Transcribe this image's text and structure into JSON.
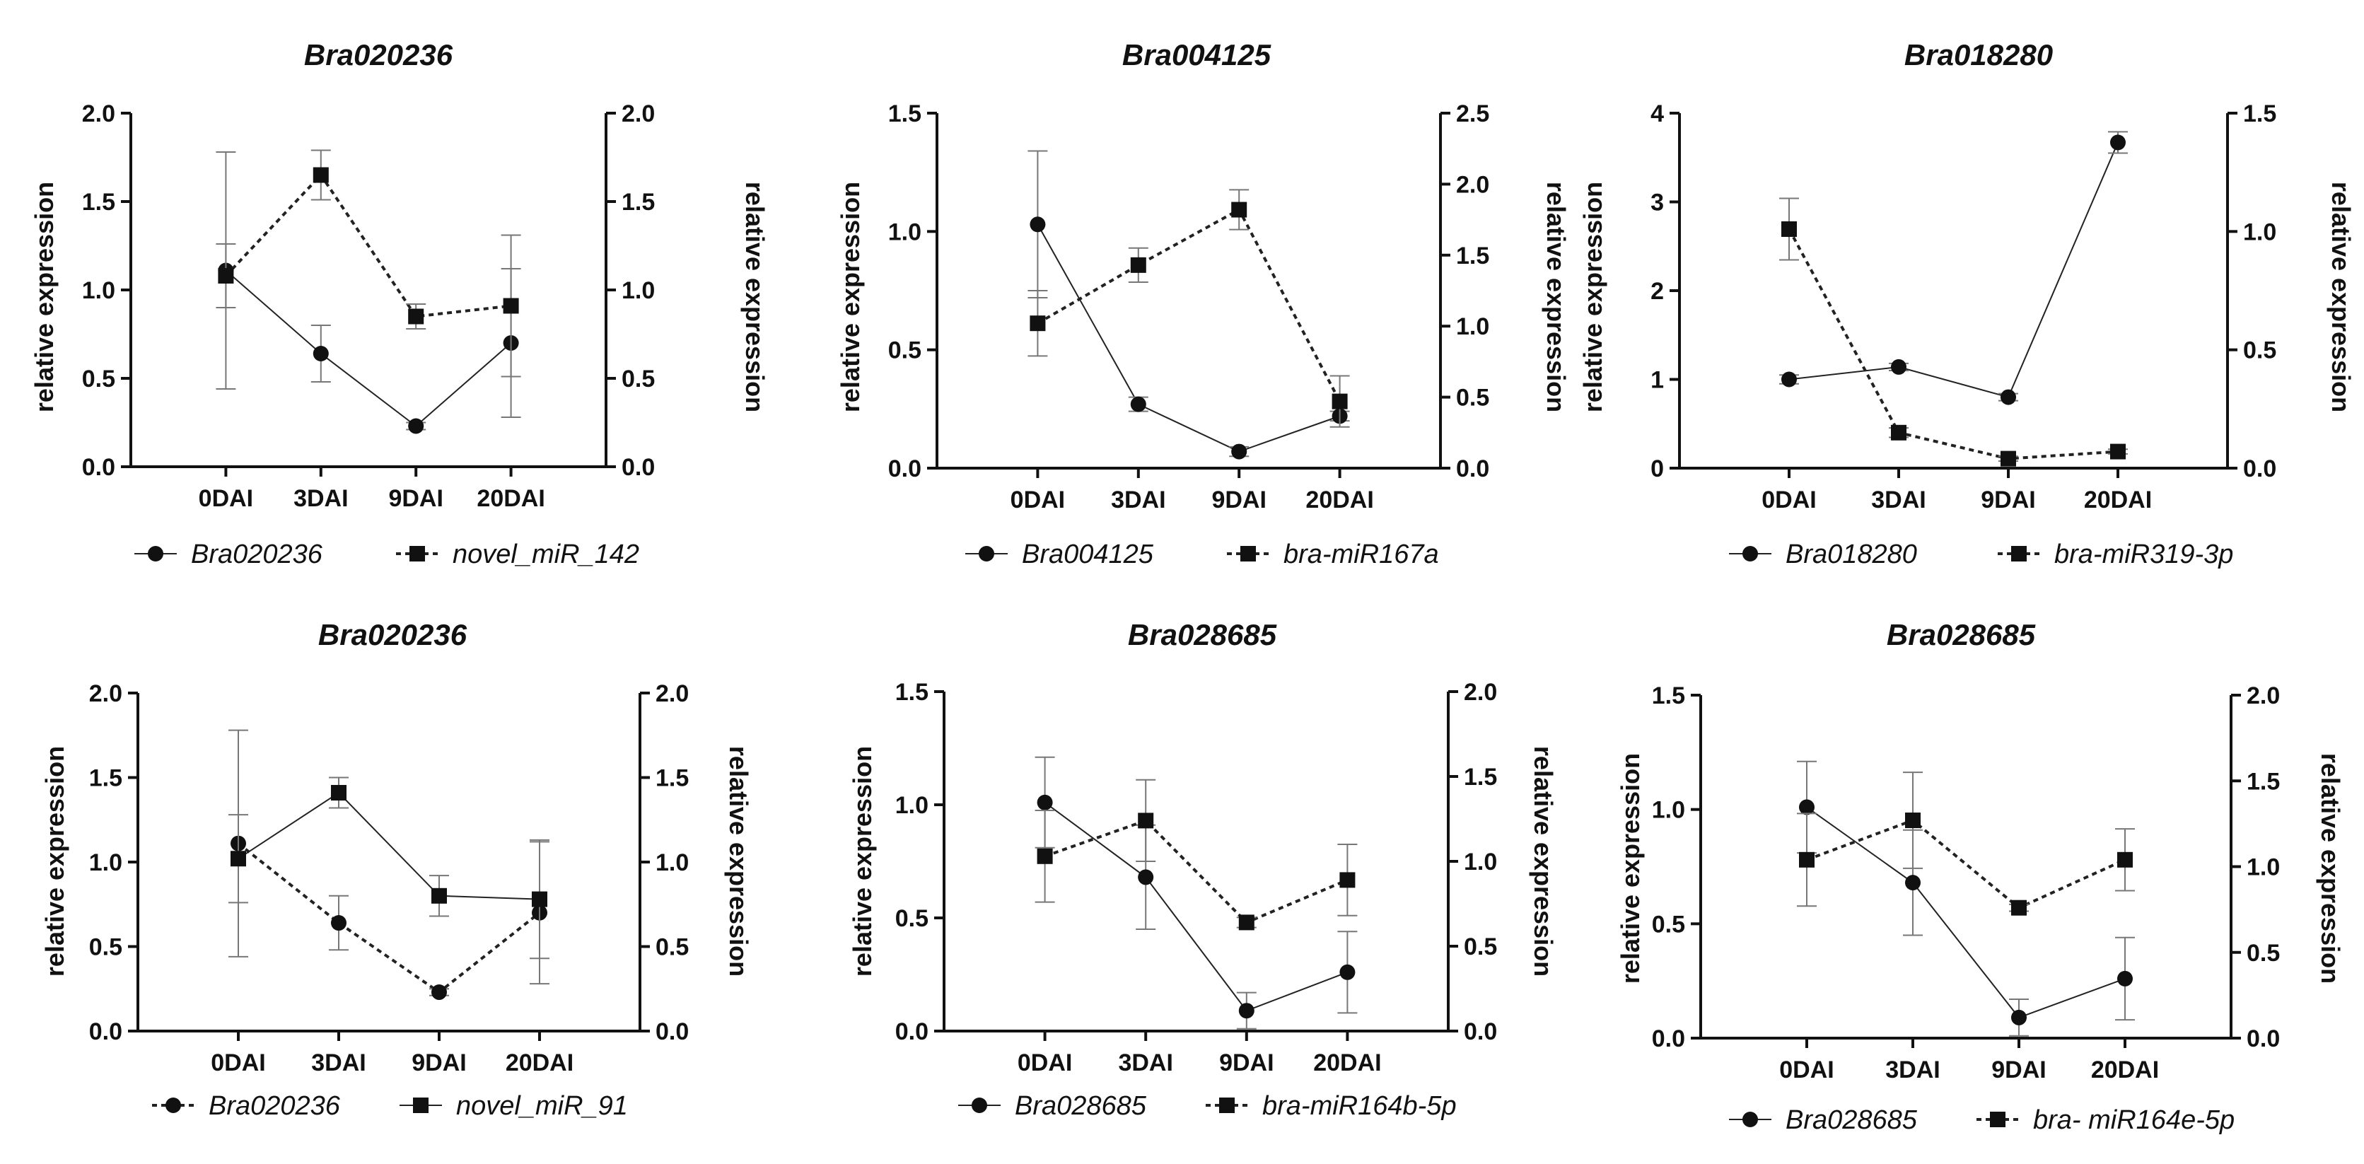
{
  "chart_data": [
    {
      "type": "line",
      "title": "Bra020236",
      "categories": [
        "0DAI",
        "3DAI",
        "9DAI",
        "20DAI"
      ],
      "ylabel": "relative expression",
      "y2label": "relative expression",
      "ylim": [
        0,
        2.0
      ],
      "yticks": [
        "0.0",
        "0.5",
        "1.0",
        "1.5",
        "2.0"
      ],
      "y2lim": [
        0,
        2.0
      ],
      "y2ticks": [
        "0.0",
        "0.5",
        "1.0",
        "1.5",
        "2.0"
      ],
      "series": [
        {
          "name": "Bra020236",
          "axis": "left",
          "marker": "circle",
          "line": "solid",
          "values": [
            1.11,
            0.64,
            0.23,
            0.7
          ],
          "errors": [
            0.67,
            0.16,
            0.02,
            0.42
          ]
        },
        {
          "name": "novel_miR_142",
          "axis": "right",
          "marker": "square",
          "line": "dotted",
          "values": [
            1.08,
            1.65,
            0.85,
            0.91
          ],
          "errors": [
            0.18,
            0.14,
            0.07,
            0.4
          ]
        }
      ]
    },
    {
      "type": "line",
      "title": "Bra004125",
      "categories": [
        "0DAI",
        "3DAI",
        "9DAI",
        "20DAI"
      ],
      "ylabel": "relative expression",
      "y2label": "relative expression",
      "ylim": [
        0,
        1.5
      ],
      "yticks": [
        "0.0",
        "0.5",
        "1.0",
        "1.5"
      ],
      "y2lim": [
        0,
        2.5
      ],
      "y2ticks": [
        "0.0",
        "0.5",
        "1.0",
        "1.5",
        "2.0",
        "2.5"
      ],
      "series": [
        {
          "name": "Bra004125",
          "axis": "left",
          "marker": "circle",
          "line": "solid",
          "values": [
            1.03,
            0.27,
            0.07,
            0.22
          ],
          "errors": [
            0.31,
            0.03,
            0.02,
            0.02
          ]
        },
        {
          "name": "bra-miR167a",
          "axis": "right",
          "marker": "square",
          "line": "dotted",
          "values": [
            1.02,
            1.43,
            1.82,
            0.47
          ],
          "errors": [
            0.23,
            0.12,
            0.14,
            0.18
          ]
        }
      ]
    },
    {
      "type": "line",
      "title": "Bra018280",
      "categories": [
        "0DAI",
        "3DAI",
        "9DAI",
        "20DAI"
      ],
      "ylabel": "relative expression",
      "y2label": "relative expression",
      "ylim": [
        0,
        4
      ],
      "yticks": [
        "0",
        "1",
        "2",
        "3",
        "4"
      ],
      "y2lim": [
        0,
        1.5
      ],
      "y2ticks": [
        "0.0",
        "0.5",
        "1.0",
        "1.5"
      ],
      "series": [
        {
          "name": "Bra018280",
          "axis": "left",
          "marker": "circle",
          "line": "solid",
          "values": [
            1.0,
            1.14,
            0.8,
            3.67
          ],
          "errors": [
            0.05,
            0.04,
            0.04,
            0.12
          ]
        },
        {
          "name": "bra-miR319-3p",
          "axis": "right",
          "marker": "square",
          "line": "dotted",
          "values": [
            1.01,
            0.15,
            0.04,
            0.07
          ],
          "errors": [
            0.13,
            0.02,
            0.01,
            0.01
          ]
        }
      ]
    },
    {
      "type": "line",
      "title": "Bra020236",
      "categories": [
        "0DAI",
        "3DAI",
        "9DAI",
        "20DAI"
      ],
      "ylabel": "relative expression",
      "y2label": "relative expression",
      "ylim": [
        0,
        2.0
      ],
      "yticks": [
        "0.0",
        "0.5",
        "1.0",
        "1.5",
        "2.0"
      ],
      "y2lim": [
        0,
        2.0
      ],
      "y2ticks": [
        "0.0",
        "0.5",
        "1.0",
        "1.5",
        "2.0"
      ],
      "series": [
        {
          "name": "Bra020236",
          "axis": "left",
          "marker": "circle",
          "line": "dotted",
          "values": [
            1.11,
            0.64,
            0.23,
            0.7
          ],
          "errors": [
            0.67,
            0.16,
            0.02,
            0.42
          ]
        },
        {
          "name": "novel_miR_91",
          "axis": "right",
          "marker": "square",
          "line": "solid",
          "values": [
            1.02,
            1.41,
            0.8,
            0.78
          ],
          "errors": [
            0.26,
            0.09,
            0.12,
            0.35
          ]
        }
      ]
    },
    {
      "type": "line",
      "title": "Bra028685",
      "categories": [
        "0DAI",
        "3DAI",
        "9DAI",
        "20DAI"
      ],
      "ylabel": "relative expression",
      "y2label": "relative expression",
      "ylim": [
        0,
        1.5
      ],
      "yticks": [
        "0.0",
        "0.5",
        "1.0",
        "1.5"
      ],
      "y2lim": [
        0,
        2.0
      ],
      "y2ticks": [
        "0.0",
        "0.5",
        "1.0",
        "1.5",
        "2.0"
      ],
      "series": [
        {
          "name": "Bra028685",
          "axis": "left",
          "marker": "circle",
          "line": "solid",
          "values": [
            1.01,
            0.68,
            0.09,
            0.26
          ],
          "errors": [
            0.2,
            0.23,
            0.08,
            0.18
          ]
        },
        {
          "name": "bra-miR164b-5p",
          "axis": "right",
          "marker": "square",
          "line": "dotted",
          "values": [
            1.03,
            1.24,
            0.64,
            0.89
          ],
          "errors": [
            0.27,
            0.24,
            0.03,
            0.21
          ]
        }
      ]
    },
    {
      "type": "line",
      "title": "Bra028685",
      "categories": [
        "0DAI",
        "3DAI",
        "9DAI",
        "20DAI"
      ],
      "ylabel": "relative expression",
      "y2label": "relative expression",
      "ylim": [
        0,
        1.5
      ],
      "yticks": [
        "0.0",
        "0.5",
        "1.0",
        "1.5"
      ],
      "y2lim": [
        0,
        2.0
      ],
      "y2ticks": [
        "0.0",
        "0.5",
        "1.0",
        "1.5",
        "2.0"
      ],
      "series": [
        {
          "name": "Bra028685",
          "axis": "left",
          "marker": "circle",
          "line": "solid",
          "values": [
            1.01,
            0.68,
            0.09,
            0.26
          ],
          "errors": [
            0.2,
            0.23,
            0.08,
            0.18
          ]
        },
        {
          "name": "bra- miR164e-5p",
          "axis": "right",
          "marker": "square",
          "line": "dotted",
          "values": [
            1.04,
            1.27,
            0.76,
            1.04
          ],
          "errors": [
            0.27,
            0.28,
            0.02,
            0.18
          ]
        }
      ]
    }
  ]
}
